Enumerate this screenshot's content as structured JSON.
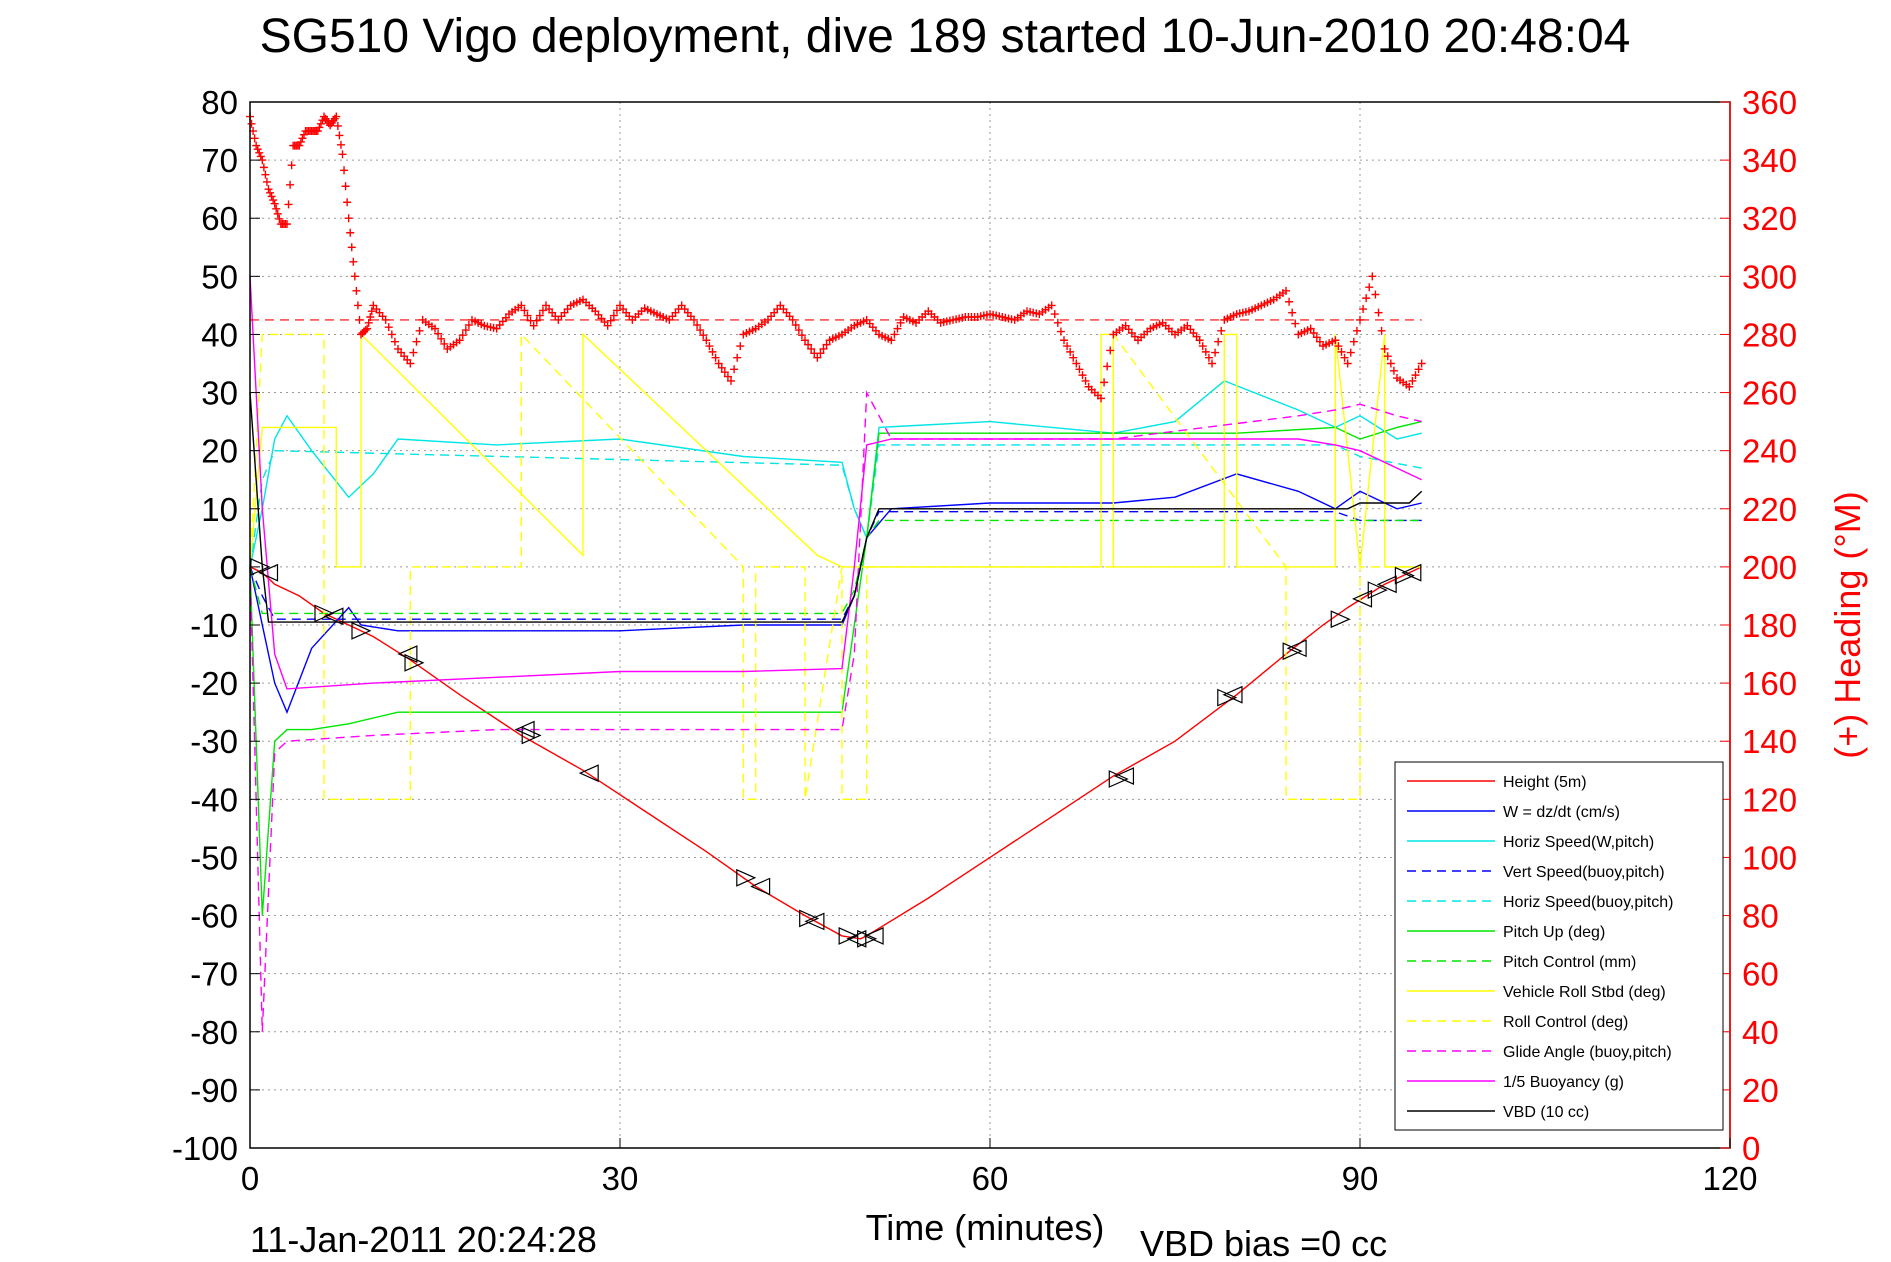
{
  "chart_data": {
    "type": "line",
    "title": "SG510 Vigo deployment, dive 189 started 10-Jun-2010 20:48:04",
    "xlabel": "Time (minutes)",
    "ylabel": "",
    "ylabel_right": "(+) Heading (°M)",
    "xlim": [
      0,
      120
    ],
    "ylim": [
      -100,
      80
    ],
    "ylim_right": [
      0,
      360
    ],
    "grid": true,
    "legend_position": "lower-right",
    "footer_left": "11-Jan-2011 20:24:28",
    "footer_right": "VBD bias =0 cc",
    "x_ticks": [
      "0",
      "30",
      "60",
      "90",
      "120"
    ],
    "y_ticks": [
      "80",
      "70",
      "60",
      "50",
      "40",
      "30",
      "20",
      "10",
      "0",
      "-10",
      "-20",
      "-30",
      "-40",
      "-50",
      "-60",
      "-70",
      "-80",
      "-90",
      "-100"
    ],
    "y_ticks_right": [
      "360",
      "340",
      "320",
      "300",
      "280",
      "260",
      "240",
      "220",
      "200",
      "180",
      "160",
      "140",
      "120",
      "100",
      "80",
      "60",
      "40",
      "20",
      "0"
    ],
    "series": [
      {
        "name": "Height (5m)",
        "color": "#ff0000",
        "style": "solid",
        "x": [
          0,
          1,
          2,
          4,
          6,
          8,
          10,
          13,
          17,
          22,
          27,
          32,
          37,
          41,
          45,
          48,
          49.5,
          50,
          55,
          60,
          65,
          70,
          75,
          80,
          84,
          87,
          89,
          92,
          95
        ],
        "y": [
          0,
          -1,
          -3,
          -5,
          -8,
          -10,
          -12,
          -16,
          -22,
          -29,
          -35,
          -42,
          -49,
          -55,
          -60,
          -63.5,
          -64,
          -63.5,
          -57,
          -50,
          -43,
          -36,
          -30,
          -22,
          -15,
          -10,
          -7,
          -3,
          0
        ]
      },
      {
        "name": "W = dz/dt (cm/s)",
        "color": "#0000ff",
        "style": "solid",
        "x": [
          0,
          1,
          2,
          3,
          5,
          8,
          9,
          12,
          20,
          30,
          40,
          48,
          49,
          50,
          52,
          60,
          70,
          75,
          80,
          85,
          88,
          90,
          93,
          95
        ],
        "y": [
          0,
          -10,
          -20,
          -25,
          -14,
          -7,
          -10,
          -11,
          -11,
          -11,
          -10,
          -10,
          -5,
          5,
          10,
          11,
          11,
          12,
          16,
          13,
          10,
          13,
          10,
          11
        ]
      },
      {
        "name": "Horiz Speed(W,pitch)",
        "color": "#00e5e5",
        "style": "solid",
        "x": [
          0,
          1,
          2,
          3,
          5,
          8,
          10,
          12,
          20,
          30,
          40,
          48,
          49,
          50,
          51,
          60,
          70,
          75,
          79,
          85,
          88,
          90,
          93,
          95
        ],
        "y": [
          0,
          10,
          22,
          26,
          20,
          12,
          16,
          22,
          21,
          22,
          19,
          18,
          10,
          5,
          24,
          25,
          23,
          25,
          32,
          27,
          24,
          26,
          22,
          23
        ]
      },
      {
        "name": "Vert Speed(buoy,pitch)",
        "color": "#0000ff",
        "style": "dashed",
        "x": [
          0,
          1,
          2,
          48,
          49,
          50,
          51,
          88,
          90,
          95
        ],
        "y": [
          0,
          -5,
          -9,
          -9,
          -5,
          5,
          9.5,
          9.5,
          8,
          8
        ]
      },
      {
        "name": "Horiz Speed(buoy,pitch)",
        "color": "#00e5e5",
        "style": "dashed",
        "x": [
          0,
          1,
          2,
          48,
          49,
          50,
          51,
          88,
          90,
          95
        ],
        "y": [
          0,
          15,
          20,
          17.5,
          10,
          5,
          21,
          21,
          19,
          17
        ]
      },
      {
        "name": "Pitch Up (deg)",
        "color": "#00e600",
        "style": "solid",
        "x": [
          0,
          1,
          2,
          3,
          5,
          8,
          12,
          20,
          30,
          40,
          48,
          49,
          50,
          51,
          60,
          70,
          80,
          88,
          90,
          93,
          95
        ],
        "y": [
          0,
          -60,
          -30,
          -28,
          -28,
          -27,
          -25,
          -25,
          -25,
          -25,
          -25,
          -10,
          5,
          23,
          23,
          23,
          23,
          24,
          22,
          24,
          25
        ]
      },
      {
        "name": "Pitch Control (mm)",
        "color": "#00e600",
        "style": "dashed",
        "x": [
          0,
          1,
          2,
          48,
          49,
          50,
          51,
          95
        ],
        "y": [
          0,
          -8,
          -8,
          -8,
          -4,
          5,
          8,
          8
        ]
      },
      {
        "name": "Vehicle Roll Stbd (deg)",
        "color": "#ffff00",
        "style": "solid",
        "x": [
          0,
          1,
          1,
          7,
          7,
          9,
          9,
          27,
          27,
          46,
          46,
          48,
          48,
          49,
          50,
          51,
          69,
          69,
          70,
          70,
          79,
          79,
          80,
          80,
          88,
          88,
          90,
          92,
          92,
          95
        ],
        "y": [
          0,
          24,
          24,
          24,
          0,
          0,
          40,
          2,
          40,
          2,
          2,
          0,
          0,
          0,
          0,
          0,
          0,
          40,
          40,
          0,
          0,
          40,
          40,
          0,
          0,
          40,
          0,
          40,
          0,
          0
        ]
      },
      {
        "name": "Roll Control (deg)",
        "color": "#ffff00",
        "style": "dashed",
        "x": [
          0,
          1,
          1,
          6,
          6,
          13,
          13,
          22,
          22,
          40,
          40,
          41,
          41,
          45,
          45,
          48,
          48,
          50,
          50,
          70,
          70,
          84,
          84,
          90,
          90,
          95
        ],
        "y": [
          0,
          40,
          40,
          40,
          -40,
          -40,
          0,
          0,
          40,
          0,
          -40,
          -40,
          0,
          0,
          -40,
          0,
          -40,
          -40,
          0,
          0,
          40,
          0,
          -40,
          -40,
          0,
          0
        ]
      },
      {
        "name": "Glide Angle (buoy,pitch)",
        "color": "#ff00ff",
        "style": "dashed",
        "x": [
          0,
          1,
          2,
          3,
          10,
          20,
          30,
          40,
          48,
          49,
          50,
          52,
          70,
          85,
          88,
          90,
          93,
          95
        ],
        "y": [
          0,
          -80,
          -32,
          -30,
          -29,
          -28,
          -28,
          -28,
          -28,
          -15,
          30,
          22,
          22,
          26,
          27,
          28,
          26,
          25
        ]
      },
      {
        "name": "1/5 Buoyancy (g)",
        "color": "#ff00ff",
        "style": "solid",
        "x": [
          0,
          1,
          2,
          3,
          10,
          20,
          30,
          40,
          48,
          49,
          50,
          52,
          70,
          85,
          88,
          90,
          93,
          95
        ],
        "y": [
          50,
          10,
          -15,
          -21,
          -20,
          -19,
          -18,
          -18,
          -17.5,
          0,
          21,
          22,
          22,
          22,
          21,
          20,
          17,
          15
        ]
      },
      {
        "name": "VBD (10 cc)",
        "color": "#000000",
        "style": "solid",
        "x": [
          0,
          1,
          1.5,
          48,
          49,
          50,
          51,
          89,
          90,
          94,
          95
        ],
        "y": [
          30,
          0,
          -9.5,
          -9.5,
          -5,
          5,
          10,
          10,
          11,
          11,
          13
        ]
      }
    ],
    "heading": {
      "name": "(+) Heading",
      "axis": "right",
      "color": "#ff0000",
      "marker": "+",
      "reference_value": 285,
      "x": [
        0,
        0.5,
        1,
        1.5,
        2,
        2.5,
        3,
        3.5,
        4,
        4.5,
        5,
        5.5,
        6,
        6.5,
        7,
        7.5,
        8,
        8.5,
        9,
        9.5,
        10,
        11,
        12,
        13,
        14,
        15,
        16,
        17,
        18,
        19,
        20,
        21,
        22,
        23,
        24,
        25,
        26,
        27,
        28,
        29,
        30,
        31,
        32,
        33,
        34,
        35,
        36,
        37,
        38,
        39,
        40,
        41,
        42,
        43,
        44,
        45,
        46,
        47,
        48,
        49,
        50,
        51,
        52,
        53,
        54,
        55,
        56,
        57,
        58,
        59,
        60,
        61,
        62,
        63,
        64,
        65,
        66,
        67,
        68,
        69,
        70,
        71,
        72,
        73,
        74,
        75,
        76,
        77,
        78,
        79,
        80,
        81,
        82,
        83,
        84,
        85,
        86,
        87,
        88,
        89,
        90,
        91,
        92,
        93,
        94,
        95
      ],
      "y": [
        355,
        345,
        340,
        330,
        325,
        318,
        318,
        345,
        345,
        350,
        350,
        350,
        355,
        352,
        355,
        342,
        320,
        300,
        280,
        282,
        290,
        285,
        275,
        270,
        285,
        282,
        275,
        278,
        285,
        283,
        282,
        287,
        290,
        283,
        290,
        285,
        290,
        292,
        288,
        283,
        290,
        285,
        289,
        287,
        285,
        290,
        285,
        278,
        270,
        264,
        280,
        282,
        285,
        290,
        285,
        278,
        272,
        278,
        280,
        283,
        285,
        280,
        278,
        286,
        284,
        288,
        284,
        285,
        286,
        286,
        287,
        286,
        285,
        288,
        287,
        290,
        278,
        270,
        262,
        258,
        280,
        283,
        278,
        282,
        284,
        280,
        283,
        278,
        270,
        285,
        287,
        288,
        290,
        292,
        295,
        280,
        282,
        276,
        278,
        270,
        285,
        300,
        275,
        265,
        262,
        270
      ]
    },
    "markers": [
      {
        "x": 0.8,
        "y": 0
      },
      {
        "x": 1.5,
        "y": -1
      },
      {
        "x": 6,
        "y": -8
      },
      {
        "x": 6.8,
        "y": -8.5
      },
      {
        "x": 9,
        "y": -11
      },
      {
        "x": 12.8,
        "y": -15
      },
      {
        "x": 13.3,
        "y": -16.5
      },
      {
        "x": 22.3,
        "y": -28
      },
      {
        "x": 22.8,
        "y": -29
      },
      {
        "x": 27.5,
        "y": -35.5
      },
      {
        "x": 40.2,
        "y": -53.5
      },
      {
        "x": 41.4,
        "y": -55
      },
      {
        "x": 45.3,
        "y": -60.5
      },
      {
        "x": 45.8,
        "y": -61
      },
      {
        "x": 48.5,
        "y": -63.5
      },
      {
        "x": 49.2,
        "y": -64
      },
      {
        "x": 50.0,
        "y": -64
      },
      {
        "x": 50.6,
        "y": -63.5
      },
      {
        "x": 70.4,
        "y": -36.5
      },
      {
        "x": 70.9,
        "y": -36
      },
      {
        "x": 79.2,
        "y": -22.5
      },
      {
        "x": 79.7,
        "y": -22
      },
      {
        "x": 84.5,
        "y": -14.5
      },
      {
        "x": 84.9,
        "y": -14
      },
      {
        "x": 88.4,
        "y": -9
      },
      {
        "x": 90.2,
        "y": -5.5
      },
      {
        "x": 91.4,
        "y": -4
      },
      {
        "x": 92.2,
        "y": -3
      },
      {
        "x": 93.6,
        "y": -1.5
      },
      {
        "x": 94.2,
        "y": -1
      }
    ]
  }
}
